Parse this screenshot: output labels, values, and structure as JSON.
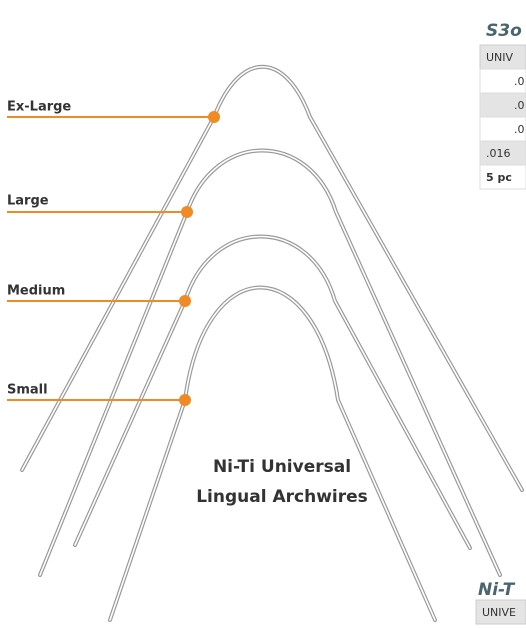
{
  "sizes": [
    "Ex-Large",
    "Large",
    "Medium",
    "Small"
  ],
  "caption": [
    "Ni-Ti Universal",
    "Lingual Archwires"
  ],
  "table_top": {
    "title": "S3o",
    "header": "UNIV",
    "rows": [
      ".0",
      ".0",
      ".0",
      ".016",
      "5 pc"
    ]
  },
  "table_bottom": {
    "title": "Ni-T",
    "header": "UNIVE"
  }
}
